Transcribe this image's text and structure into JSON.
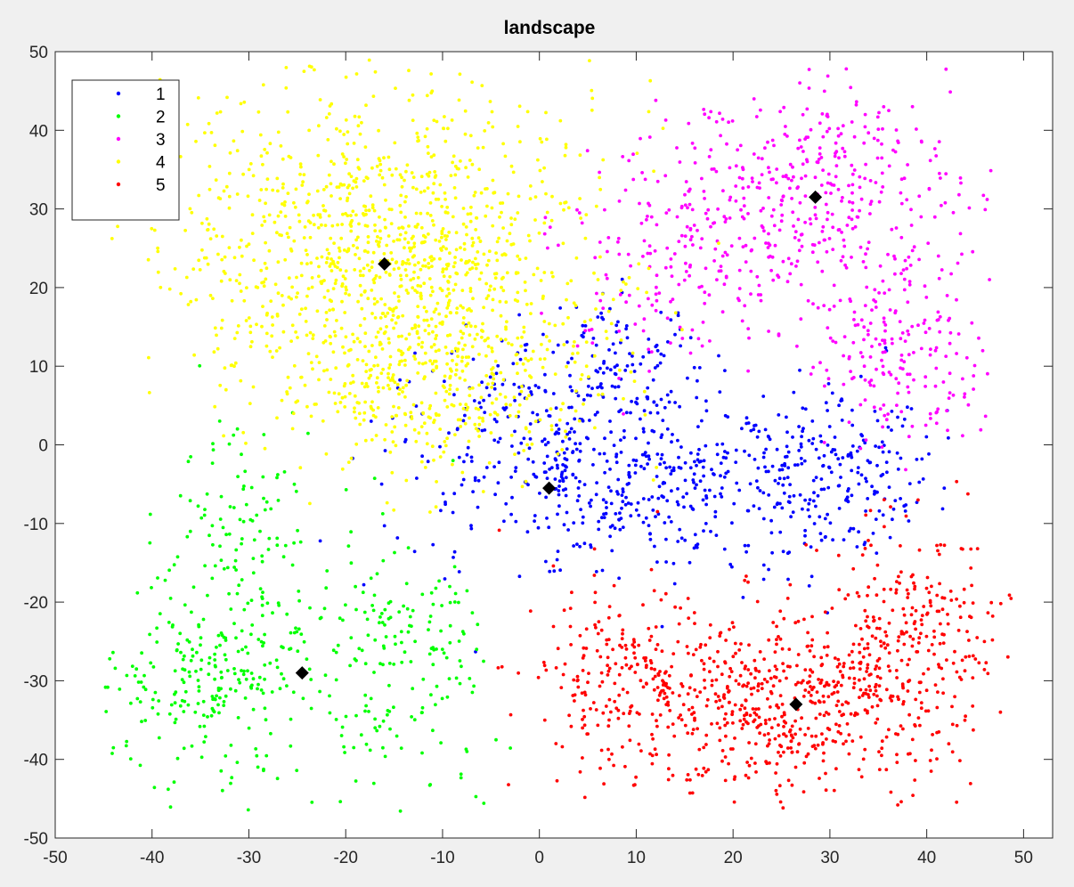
{
  "chart_data": {
    "type": "scatter",
    "title": "landscape",
    "xlabel": "",
    "ylabel": "",
    "xlim": [
      -50,
      53
    ],
    "ylim": [
      -50,
      50
    ],
    "x_ticks": [
      -50,
      -40,
      -30,
      -20,
      -10,
      0,
      10,
      20,
      30,
      40,
      50
    ],
    "y_ticks": [
      -50,
      -40,
      -30,
      -20,
      -10,
      0,
      10,
      20,
      30,
      40,
      50
    ],
    "grid": false,
    "legend_position": "top-left",
    "series": [
      {
        "name": "1",
        "color": "#0000ff",
        "n_points": 900,
        "centroid": [
          1,
          -5.5
        ],
        "blobs": [
          {
            "cx": 0,
            "cy": 0,
            "sx": 8,
            "sy": 7,
            "w": 0.35
          },
          {
            "cx": 14,
            "cy": -6,
            "sx": 7,
            "sy": 6,
            "w": 0.3
          },
          {
            "cx": 30,
            "cy": -3,
            "sx": 5,
            "sy": 5,
            "w": 0.25
          },
          {
            "cx": 9,
            "cy": 10,
            "sx": 5,
            "sy": 5,
            "w": 0.1
          }
        ]
      },
      {
        "name": "2",
        "color": "#00ff00",
        "n_points": 550,
        "centroid": [
          -24.5,
          -29
        ],
        "blobs": [
          {
            "cx": -34,
            "cy": -30,
            "sx": 5,
            "sy": 7,
            "w": 0.45
          },
          {
            "cx": -30,
            "cy": -10,
            "sx": 4,
            "sy": 6,
            "w": 0.2
          },
          {
            "cx": -15,
            "cy": -28,
            "sx": 5,
            "sy": 8,
            "w": 0.35
          }
        ]
      },
      {
        "name": "3",
        "color": "#ff00ff",
        "n_points": 750,
        "centroid": [
          28.5,
          31.5
        ],
        "blobs": [
          {
            "cx": 29,
            "cy": 33,
            "sx": 7,
            "sy": 7,
            "w": 0.45
          },
          {
            "cx": 15,
            "cy": 25,
            "sx": 6,
            "sy": 7,
            "w": 0.25
          },
          {
            "cx": 37,
            "cy": 12,
            "sx": 5,
            "sy": 6,
            "w": 0.3
          }
        ]
      },
      {
        "name": "4",
        "color": "#ffff00",
        "n_points": 1500,
        "centroid": [
          -16,
          23
        ],
        "blobs": [
          {
            "cx": -16,
            "cy": 25,
            "sx": 11,
            "sy": 10,
            "w": 0.75
          },
          {
            "cx": -10,
            "cy": 8,
            "sx": 8,
            "sy": 6,
            "w": 0.25
          }
        ]
      },
      {
        "name": "5",
        "color": "#ff0000",
        "n_points": 1000,
        "centroid": [
          26.5,
          -33
        ],
        "blobs": [
          {
            "cx": 24,
            "cy": -33,
            "sx": 8,
            "sy": 6,
            "w": 0.5
          },
          {
            "cx": 10,
            "cy": -30,
            "sx": 6,
            "sy": 6,
            "w": 0.2
          },
          {
            "cx": 38,
            "cy": -25,
            "sx": 5,
            "sy": 7,
            "w": 0.3
          }
        ]
      }
    ],
    "centroid_marker": {
      "shape": "diamond",
      "color": "#000000"
    }
  }
}
